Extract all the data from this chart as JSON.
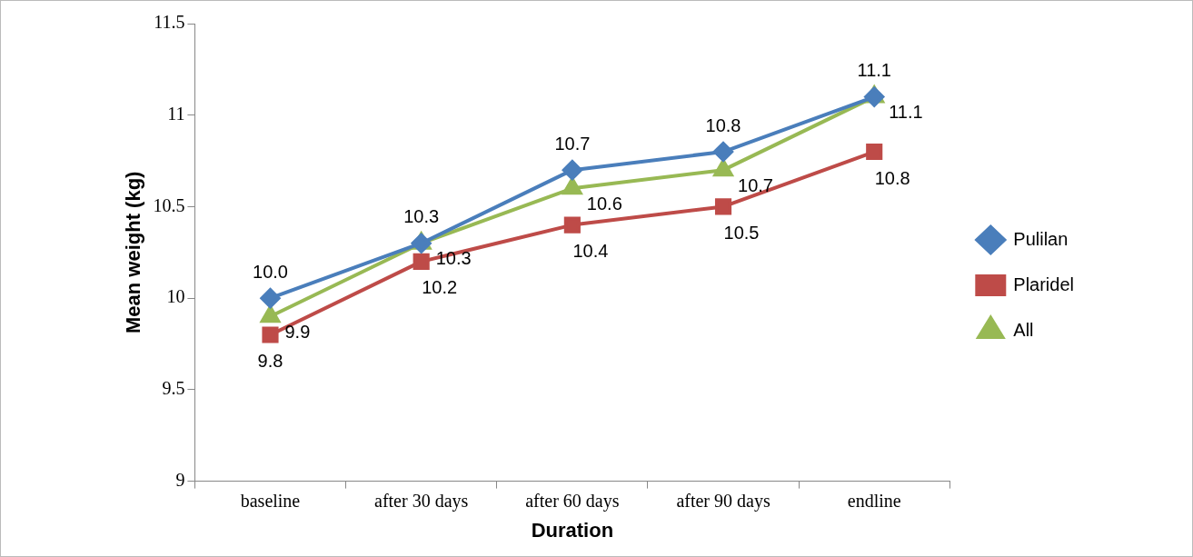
{
  "chart_data": {
    "type": "line",
    "xlabel": "Duration",
    "ylabel": "Mean weight (kg)",
    "categories": [
      "baseline",
      "after 30 days",
      "after 60 days",
      "after 90 days",
      "endline"
    ],
    "series": [
      {
        "name": "Pulilan",
        "color": "#4a7ebb",
        "marker": "diamond",
        "values": [
          10.0,
          10.3,
          10.7,
          10.8,
          11.1
        ],
        "value_labels": [
          "10.0",
          "10.3",
          "10.7",
          "10.8",
          "11.1"
        ]
      },
      {
        "name": "Plaridel",
        "color": "#be4b48",
        "marker": "square",
        "values": [
          9.8,
          10.2,
          10.4,
          10.5,
          10.8
        ],
        "value_labels": [
          "9.8",
          "10.2",
          "10.4",
          "10.5",
          "10.8"
        ]
      },
      {
        "name": "All",
        "color": "#98b954",
        "marker": "triangle",
        "values": [
          9.9,
          10.3,
          10.6,
          10.7,
          11.1
        ],
        "value_labels": [
          "9.9",
          "10.3",
          "10.6",
          "10.7",
          "11.1"
        ]
      }
    ],
    "ylim": [
      9,
      11.5
    ],
    "yticks": [
      9,
      9.5,
      10,
      10.5,
      11,
      11.5
    ],
    "grid": false,
    "legend": "right",
    "line_style": "solid"
  }
}
